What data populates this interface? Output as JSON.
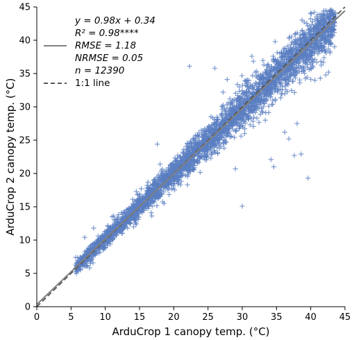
{
  "chart_data": {
    "type": "scatter",
    "title": "",
    "xlabel": "ArduCrop 1 canopy temp. (°C)",
    "ylabel": "ArduCrop 2 canopy temp. (°C)",
    "xlim": [
      0,
      45
    ],
    "ylim": [
      0,
      45
    ],
    "xticks": [
      "0",
      "5",
      "10",
      "15",
      "20",
      "25",
      "30",
      "35",
      "40",
      "45"
    ],
    "yticks": [
      "0",
      "5",
      "10",
      "15",
      "20",
      "25",
      "30",
      "35",
      "40",
      "45"
    ],
    "marker": "+",
    "grid": false,
    "legend_position": "top-left",
    "colors": {
      "points": "#5a7ec2",
      "fit_line": "#808080",
      "one_to_one_line": "#555555"
    },
    "regression": {
      "slope": 0.98,
      "intercept": 0.34,
      "r2": 0.98,
      "significance": "****",
      "rmse": 1.18,
      "nrmse": 0.05,
      "n": 12390
    },
    "legend": {
      "eq_text": "y = 0.98x + 0.34",
      "r2_text": "R² = 0.98****",
      "rmse_text": "RMSE = 1.18",
      "nrmse_text": "NRMSE = 0.05",
      "n_text": "n = 12390",
      "one_to_one_label": "1:1 line"
    },
    "series": [
      {
        "values_sample": [
          [
            6.2,
            6.5
          ],
          [
            7.8,
            8.1
          ],
          [
            9.5,
            9.7
          ],
          [
            11.2,
            11.4
          ],
          [
            12.8,
            13.1
          ],
          [
            14.5,
            14.6
          ],
          [
            16.1,
            16.3
          ],
          [
            17.6,
            17.9
          ],
          [
            19.2,
            19.4
          ],
          [
            20.8,
            21.0
          ],
          [
            22.3,
            22.6
          ],
          [
            23.9,
            24.2
          ],
          [
            25.4,
            25.6
          ],
          [
            27.0,
            27.1
          ],
          [
            28.6,
            28.8
          ],
          [
            30.1,
            30.3
          ],
          [
            31.7,
            31.9
          ],
          [
            33.3,
            33.5
          ],
          [
            34.9,
            34.8
          ],
          [
            36.5,
            36.7
          ],
          [
            38.0,
            38.2
          ],
          [
            39.6,
            39.9
          ],
          [
            41.2,
            41.3
          ],
          [
            42.7,
            42.6
          ],
          [
            43.3,
            43.9
          ]
        ],
        "outliers": [
          [
            7.0,
            10.4
          ],
          [
            8.3,
            11.8
          ],
          [
            11.0,
            13.5
          ],
          [
            17.6,
            24.4
          ],
          [
            18.0,
            21.4
          ],
          [
            18.6,
            15.5
          ],
          [
            22.0,
            18.3
          ],
          [
            22.3,
            36.1
          ],
          [
            26.0,
            35.8
          ],
          [
            27.2,
            32.2
          ],
          [
            27.8,
            34.1
          ],
          [
            29.0,
            20.7
          ],
          [
            30.0,
            15.1
          ],
          [
            31.4,
            37.6
          ],
          [
            31.9,
            35.2
          ],
          [
            34.2,
            22.1
          ],
          [
            34.6,
            21.0
          ],
          [
            35.6,
            36.4
          ],
          [
            36.2,
            26.2
          ],
          [
            36.8,
            25.2
          ],
          [
            37.6,
            22.7
          ],
          [
            38.0,
            27.5
          ],
          [
            38.4,
            33.6
          ],
          [
            38.6,
            22.9
          ],
          [
            39.6,
            19.3
          ],
          [
            40.0,
            36.4
          ],
          [
            40.6,
            34.0
          ],
          [
            41.4,
            34.3
          ],
          [
            38.9,
            37.8
          ],
          [
            36.9,
            40.5
          ],
          [
            38.7,
            39.4
          ],
          [
            41.9,
            39.0
          ],
          [
            42.2,
            34.8
          ],
          [
            42.6,
            35.2
          ],
          [
            34.8,
            39.8
          ]
        ]
      }
    ]
  }
}
